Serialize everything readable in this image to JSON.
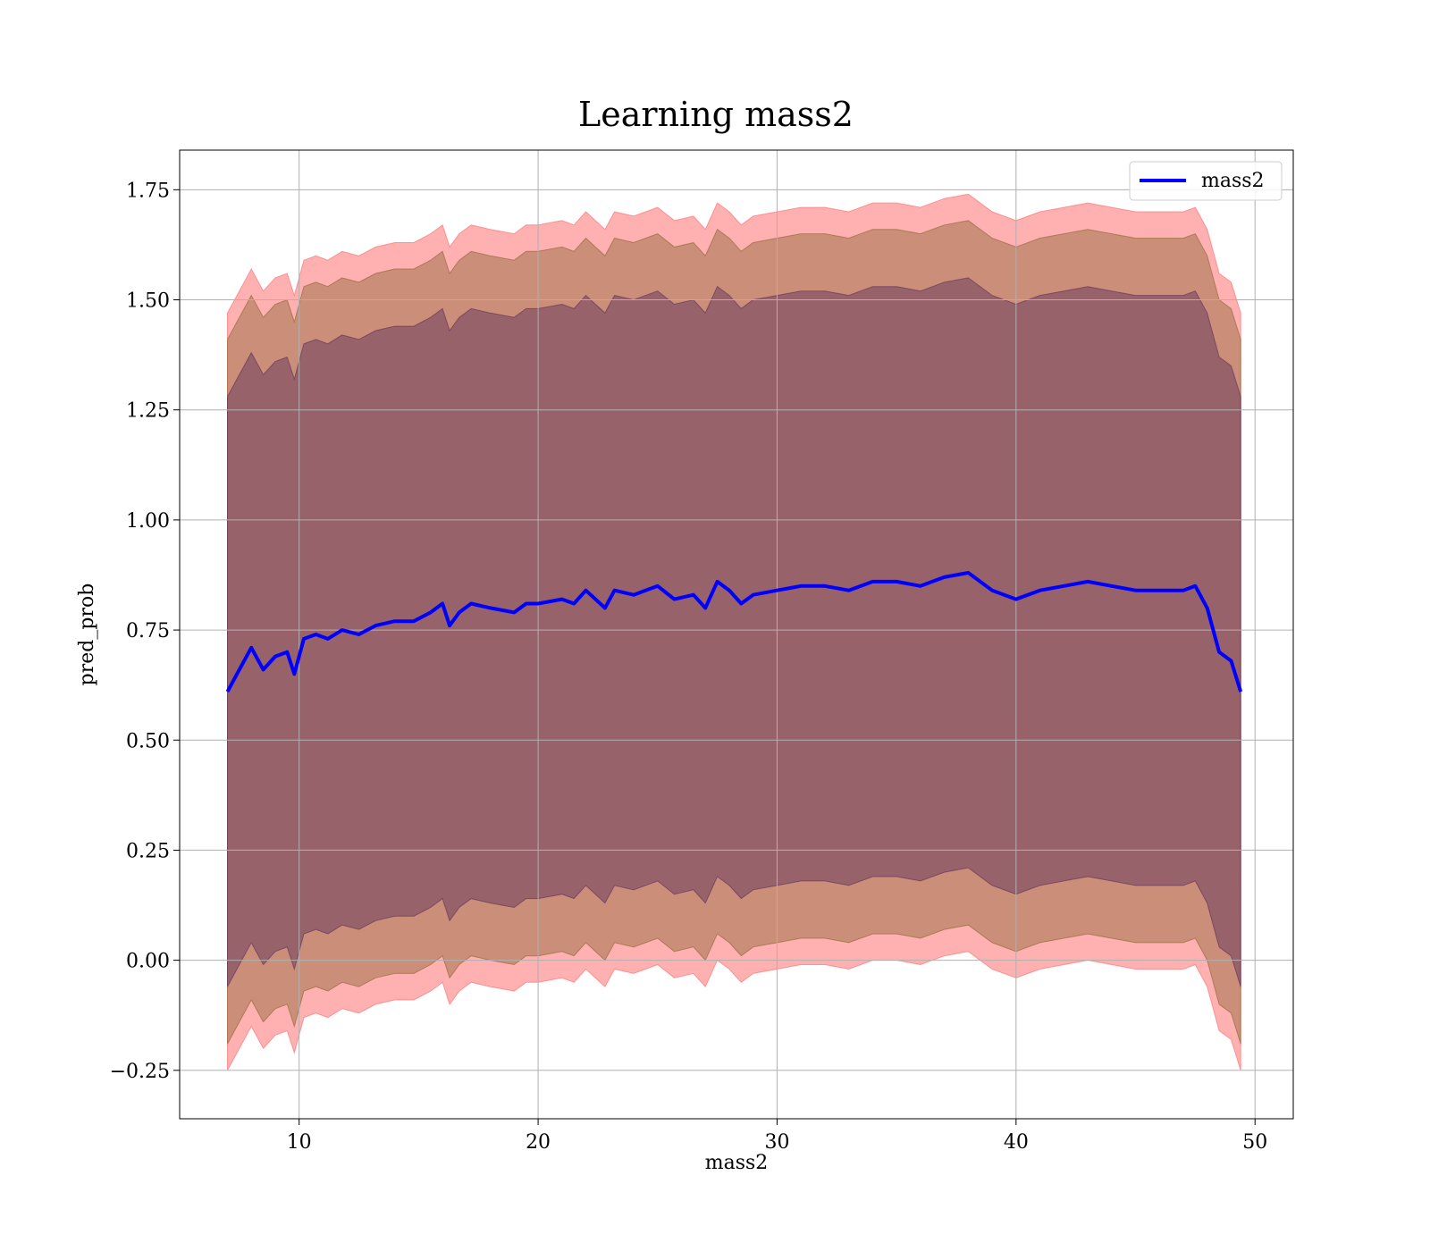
{
  "chart_data": {
    "type": "area",
    "title": "Learning mass2",
    "xlabel": "mass2",
    "ylabel": "pred_prob",
    "xlim": [
      5,
      51.6
    ],
    "ylim": [
      -0.36,
      1.84
    ],
    "x_ticks": [
      10,
      20,
      30,
      40,
      50
    ],
    "y_ticks": [
      -0.25,
      0,
      0.25,
      0.5,
      0.75,
      1.0,
      1.25,
      1.5,
      1.75
    ],
    "x_tick_labels": [
      "10",
      "20",
      "30",
      "40",
      "50"
    ],
    "y_tick_labels": [
      "−0.25",
      "0.00",
      "0.25",
      "0.50",
      "0.75",
      "1.00",
      "1.25",
      "1.50",
      "1.75"
    ],
    "grid": true,
    "legend_position": "top-right",
    "x": [
      7.0,
      7.5,
      8.0,
      8.5,
      9.0,
      9.5,
      9.8,
      10.2,
      10.7,
      11.2,
      11.8,
      12.5,
      13.2,
      14.0,
      14.8,
      15.5,
      16.0,
      16.3,
      16.7,
      17.2,
      18.0,
      19.0,
      19.5,
      20.0,
      21.0,
      21.5,
      22.0,
      22.8,
      23.2,
      24.0,
      25.0,
      25.7,
      26.5,
      27.0,
      27.5,
      28.0,
      28.5,
      29.0,
      30.0,
      31.0,
      32.0,
      33.0,
      34.0,
      35.0,
      36.0,
      37.0,
      38.0,
      39.0,
      40.0,
      41.0,
      42.0,
      43.0,
      44.0,
      45.0,
      46.0,
      47.0,
      47.5,
      48.0,
      48.5,
      49.0,
      49.4
    ],
    "series": [
      {
        "name": "mass2",
        "color": "#0000ff",
        "values": [
          0.61,
          0.66,
          0.71,
          0.66,
          0.69,
          0.7,
          0.65,
          0.73,
          0.74,
          0.73,
          0.75,
          0.74,
          0.76,
          0.77,
          0.77,
          0.79,
          0.81,
          0.76,
          0.79,
          0.81,
          0.8,
          0.79,
          0.81,
          0.81,
          0.82,
          0.81,
          0.84,
          0.8,
          0.84,
          0.83,
          0.85,
          0.82,
          0.83,
          0.8,
          0.86,
          0.84,
          0.81,
          0.83,
          0.84,
          0.85,
          0.85,
          0.84,
          0.86,
          0.86,
          0.85,
          0.87,
          0.88,
          0.84,
          0.82,
          0.84,
          0.85,
          0.86,
          0.85,
          0.84,
          0.84,
          0.84,
          0.85,
          0.8,
          0.7,
          0.68,
          0.61
        ]
      }
    ],
    "bands": [
      {
        "color": "#ff6464",
        "opacity": 0.5,
        "half_width": 0.86
      },
      {
        "color": "#8c6432",
        "opacity": 0.45,
        "half_width": 0.8
      },
      {
        "color": "#5a2d5a",
        "opacity": 0.45,
        "half_width": 0.67
      }
    ]
  }
}
